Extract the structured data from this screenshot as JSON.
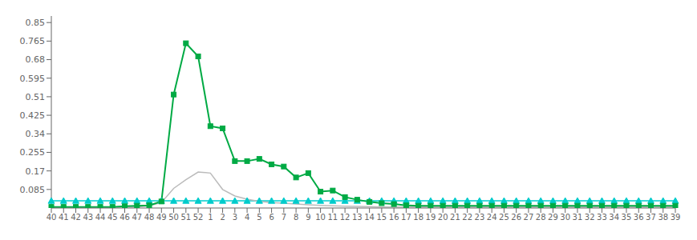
{
  "chart_data": {
    "type": "line",
    "categories": [
      "40",
      "41",
      "42",
      "43",
      "44",
      "45",
      "46",
      "47",
      "48",
      "49",
      "50",
      "51",
      "52",
      "1",
      "2",
      "3",
      "4",
      "5",
      "6",
      "7",
      "8",
      "9",
      "10",
      "11",
      "12",
      "13",
      "14",
      "15",
      "16",
      "17",
      "18",
      "19",
      "20",
      "21",
      "22",
      "23",
      "24",
      "25",
      "26",
      "27",
      "28",
      "29",
      "30",
      "31",
      "32",
      "33",
      "34",
      "35",
      "36",
      "37",
      "38",
      "39"
    ],
    "series": [
      {
        "color": "#00CCCC",
        "marker": "triangle",
        "line_style": "solid",
        "values": [
          0.033,
          0.033,
          0.033,
          0.033,
          0.033,
          0.033,
          0.033,
          0.033,
          0.033,
          0.033,
          0.033,
          0.033,
          0.033,
          0.033,
          0.033,
          0.033,
          0.033,
          0.033,
          0.033,
          0.033,
          0.033,
          0.033,
          0.033,
          0.033,
          0.033,
          0.033,
          0.033,
          0.033,
          0.033,
          0.033,
          0.033,
          0.033,
          0.033,
          0.033,
          0.033,
          0.033,
          0.033,
          0.033,
          0.033,
          0.033,
          0.033,
          0.033,
          0.033,
          0.033,
          0.033,
          0.033,
          0.033,
          0.033,
          0.033,
          0.033,
          0.033,
          0.033
        ]
      },
      {
        "color": "#BBBBBB",
        "marker": "none",
        "line_style": "solid",
        "values": [
          0.005,
          0.005,
          0.005,
          0.005,
          0.005,
          0.005,
          0.005,
          0.005,
          0.01,
          0.025,
          0.09,
          0.13,
          0.165,
          0.16,
          0.085,
          0.055,
          0.04,
          0.03,
          0.025,
          0.022,
          0.018,
          0.015,
          0.012,
          0.01,
          0.008,
          0.007,
          0.006,
          0.005,
          0.005,
          0.005,
          0.005,
          0.005,
          0.005,
          0.005,
          0.005,
          0.005,
          0.005,
          0.005,
          0.005,
          0.005,
          0.005,
          0.005,
          0.005,
          0.005,
          0.005,
          0.005,
          0.005,
          0.005,
          0.005,
          0.005,
          0.005,
          0.005
        ]
      },
      {
        "color": "#00AA44",
        "marker": "square",
        "line_style": "solid",
        "values": [
          0.005,
          0.005,
          0.005,
          0.005,
          0.005,
          0.005,
          0.008,
          0.01,
          0.012,
          0.03,
          0.52,
          0.755,
          0.695,
          0.375,
          0.365,
          0.215,
          0.215,
          0.225,
          0.2,
          0.19,
          0.14,
          0.16,
          0.075,
          0.08,
          0.05,
          0.038,
          0.028,
          0.022,
          0.018,
          0.012,
          0.01,
          0.01,
          0.01,
          0.01,
          0.01,
          0.01,
          0.01,
          0.01,
          0.01,
          0.01,
          0.01,
          0.01,
          0.01,
          0.01,
          0.01,
          0.01,
          0.01,
          0.01,
          0.01,
          0.01,
          0.01,
          0.01
        ]
      }
    ],
    "ylim": [
      0,
      0.88
    ],
    "yticks": [
      0.085,
      0.17,
      0.255,
      0.34,
      0.425,
      0.51,
      0.595,
      0.68,
      0.765,
      0.85
    ],
    "grid": false
  }
}
